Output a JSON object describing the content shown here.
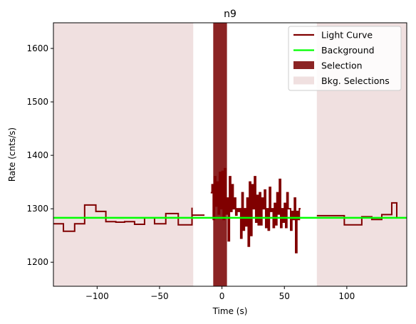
{
  "chart_data": {
    "type": "line",
    "title": "n9",
    "xlabel": "Time (s)",
    "ylabel": "Rate (cnts/s)",
    "xlim": [
      -135,
      148
    ],
    "ylim": [
      1155,
      1648
    ],
    "x_ticks": [
      -100,
      -50,
      0,
      50,
      100
    ],
    "x_tick_labels": [
      "−100",
      "−50",
      "0",
      "50",
      "100"
    ],
    "y_ticks": [
      1200,
      1300,
      1400,
      1500,
      1600
    ],
    "y_tick_labels": [
      "1200",
      "1300",
      "1400",
      "1500",
      "1600"
    ],
    "grid": false,
    "legend_position": "top-right",
    "colors": {
      "light_curve": "#800000",
      "background": "#00ff00",
      "selection": "#8b2323",
      "bkg_selection": "#f0e0e0"
    },
    "bkg_selections": [
      [
        -135,
        -23
      ],
      [
        76,
        148
      ]
    ],
    "selection": [
      -7,
      4
    ],
    "background_level": 1283,
    "legend": [
      {
        "label": "Light Curve",
        "kind": "line",
        "color": "#800000"
      },
      {
        "label": "Background",
        "kind": "line",
        "color": "#00ff00"
      },
      {
        "label": "Selection",
        "kind": "patch",
        "color": "#8b2323"
      },
      {
        "label": "Bkg. Selections",
        "kind": "patch",
        "color": "#f0e0e0"
      }
    ],
    "light_curve_left": {
      "edges": [
        -135,
        -127,
        -118,
        -110,
        -101,
        -93,
        -85,
        -78,
        -70,
        -62,
        -54,
        -45,
        -35,
        -24
      ],
      "values": [
        1272,
        1258,
        1272,
        1307,
        1295,
        1276,
        1275,
        1276,
        1271,
        1283,
        1272,
        1291,
        1270,
        1302
      ]
    },
    "light_curve_gap": {
      "edges": [
        -24,
        -14
      ],
      "values": [
        1288
      ]
    },
    "light_curve_center": {
      "edges": [
        -9,
        -8,
        -7,
        -6,
        -5,
        -4,
        -3,
        -2,
        -1,
        0,
        1,
        2,
        3,
        4,
        5,
        6,
        7,
        8,
        9,
        10,
        11,
        12,
        13,
        14,
        15,
        16,
        17,
        18,
        19,
        20,
        21,
        22,
        23,
        24,
        25,
        26,
        27,
        28,
        29,
        30,
        31,
        32,
        33,
        34,
        35,
        36,
        37,
        38,
        39,
        40,
        41,
        42,
        43,
        44,
        45,
        46,
        47,
        48,
        49,
        50,
        51,
        52,
        53,
        54,
        55,
        56,
        57,
        58,
        59,
        60,
        61,
        62,
        63
      ],
      "values": [
        1330,
        1345,
        1280,
        1360,
        1305,
        1350,
        1290,
        1368,
        1300,
        1370,
        1280,
        1375,
        1290,
        1320,
        1240,
        1360,
        1295,
        1345,
        1300,
        1320,
        1288,
        1300,
        1295,
        1300,
        1245,
        1330,
        1260,
        1300,
        1268,
        1320,
        1230,
        1350,
        1250,
        1345,
        1300,
        1360,
        1275,
        1325,
        1270,
        1330,
        1270,
        1320,
        1300,
        1335,
        1265,
        1300,
        1260,
        1340,
        1295,
        1300,
        1265,
        1310,
        1270,
        1330,
        1290,
        1355,
        1265,
        1300,
        1275,
        1310,
        1265,
        1330,
        1300,
        1300,
        1260,
        1295,
        1280,
        1320,
        1218,
        1295,
        1280,
        1300
      ]
    },
    "light_curve_right": {
      "edges": [
        76,
        93,
        98,
        108,
        112,
        120,
        128,
        136,
        140,
        148
      ],
      "values": [
        1287,
        1287,
        1270,
        1270,
        1285,
        1280,
        1289,
        1311,
        1283
      ]
    }
  }
}
